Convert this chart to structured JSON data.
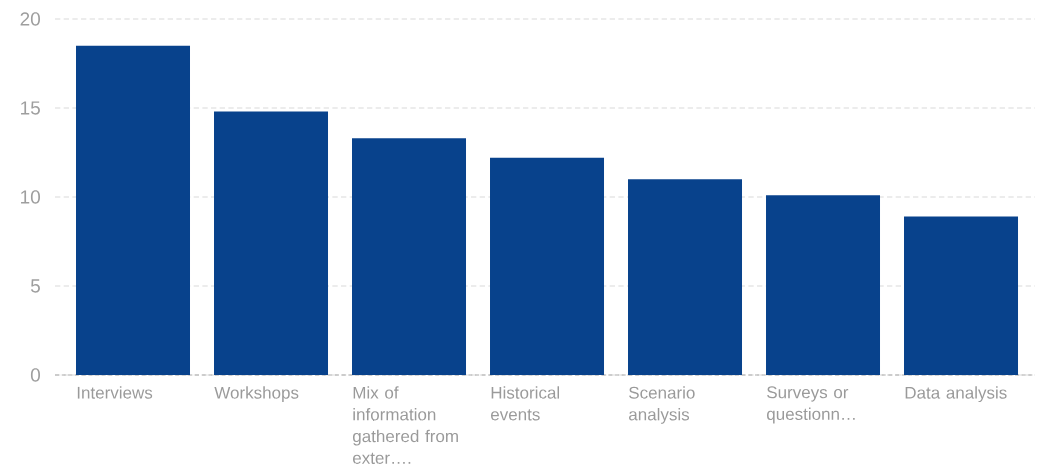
{
  "chart_data": {
    "type": "bar",
    "categories": [
      "Interviews",
      "Workshops",
      "Mix of information gathered from exter….",
      "Historical events",
      "Scenario analysis",
      "Surveys or questionn…",
      "Data analysis"
    ],
    "values": [
      18.5,
      14.8,
      13.3,
      12.2,
      11.0,
      10.1,
      8.9
    ],
    "color": "#08428c",
    "ylim": [
      0,
      20
    ],
    "yticks": [
      0,
      5,
      10,
      15,
      20
    ],
    "grid": "y"
  }
}
